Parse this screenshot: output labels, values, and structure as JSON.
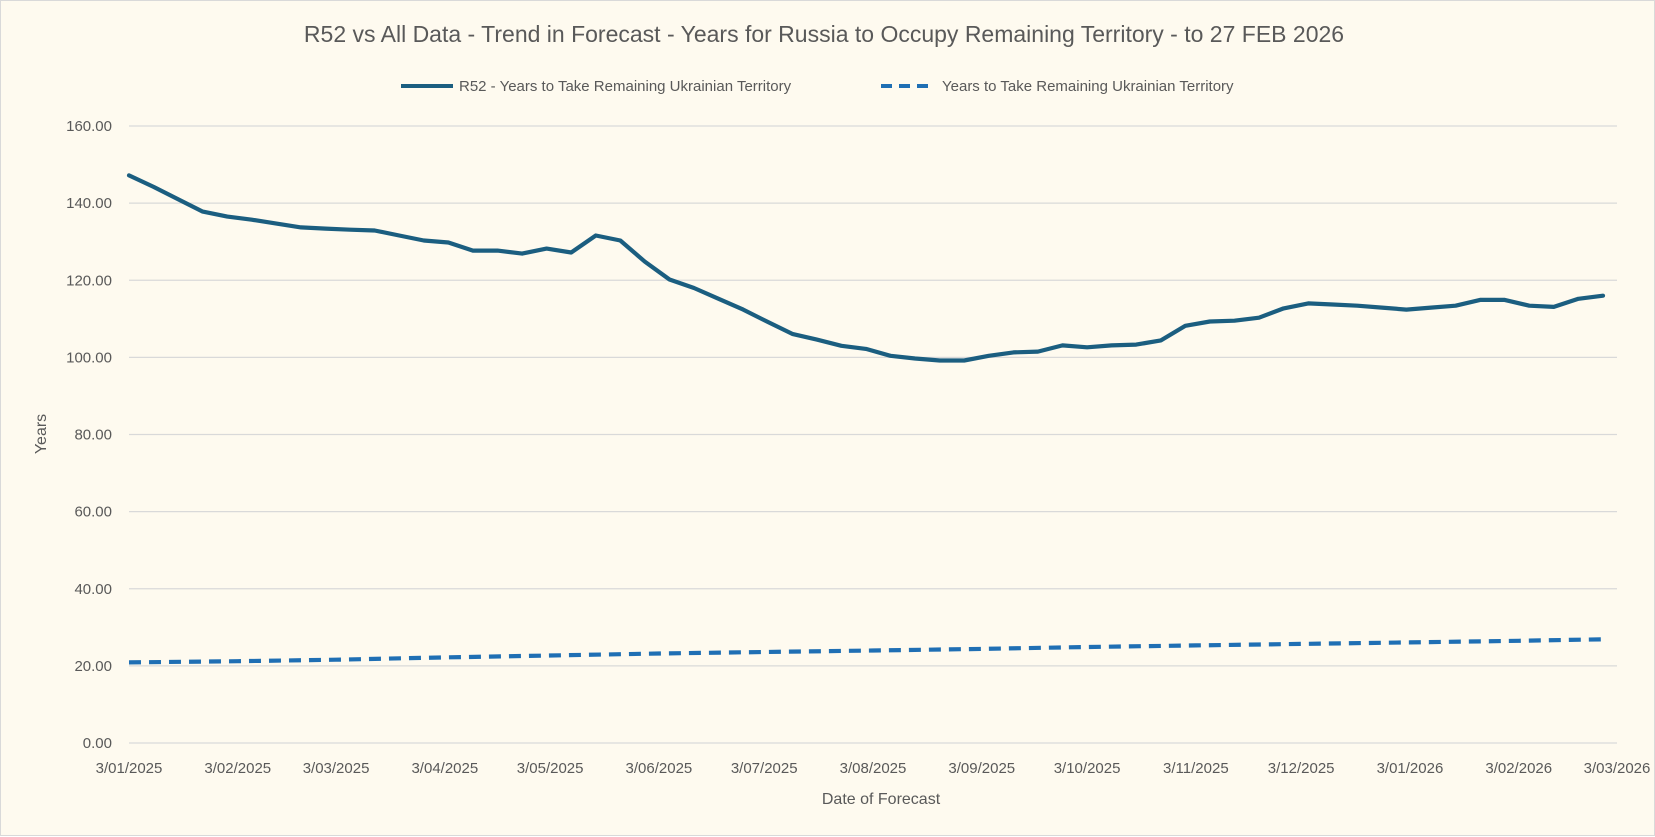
{
  "chart_data": {
    "type": "line",
    "title": "R52 vs All Data  - Trend in Forecast - Years for Russia to Occupy Remaining Territory - to 27 FEB 2026",
    "xlabel": "Date of Forecast",
    "ylabel": "Years",
    "ylim": [
      0,
      160
    ],
    "yticks": [
      "0.00",
      "20.00",
      "40.00",
      "60.00",
      "80.00",
      "100.00",
      "120.00",
      "140.00",
      "160.00"
    ],
    "xlim": [
      "2025-01-03",
      "2026-03-03"
    ],
    "xticks": [
      {
        "label": "3/01/2025",
        "date": "2025-01-03"
      },
      {
        "label": "3/02/2025",
        "date": "2025-02-03"
      },
      {
        "label": "3/03/2025",
        "date": "2025-03-03"
      },
      {
        "label": "3/04/2025",
        "date": "2025-04-03"
      },
      {
        "label": "3/05/2025",
        "date": "2025-05-03"
      },
      {
        "label": "3/06/2025",
        "date": "2025-06-03"
      },
      {
        "label": "3/07/2025",
        "date": "2025-07-03"
      },
      {
        "label": "3/08/2025",
        "date": "2025-08-03"
      },
      {
        "label": "3/09/2025",
        "date": "2025-09-03"
      },
      {
        "label": "3/10/2025",
        "date": "2025-10-03"
      },
      {
        "label": "3/11/2025",
        "date": "2025-11-03"
      },
      {
        "label": "3/12/2025",
        "date": "2025-12-03"
      },
      {
        "label": "3/01/2026",
        "date": "2026-01-03"
      },
      {
        "label": "3/02/2026",
        "date": "2026-02-03"
      },
      {
        "label": "3/03/2026",
        "date": "2026-03-03"
      }
    ],
    "grid": true,
    "legend_position": "top",
    "series": [
      {
        "name": "R52 - Years to Take Remaining Ukrainian Territory",
        "color": "#1b5e80",
        "style": "solid",
        "points": [
          [
            "2025-01-03",
            147.2
          ],
          [
            "2025-01-10",
            144.2
          ],
          [
            "2025-01-17",
            141.0
          ],
          [
            "2025-01-24",
            137.8
          ],
          [
            "2025-01-31",
            136.5
          ],
          [
            "2025-02-07",
            135.7
          ],
          [
            "2025-02-14",
            134.7
          ],
          [
            "2025-02-21",
            133.7
          ],
          [
            "2025-02-28",
            133.4
          ],
          [
            "2025-03-07",
            133.1
          ],
          [
            "2025-03-14",
            132.9
          ],
          [
            "2025-03-21",
            131.6
          ],
          [
            "2025-03-28",
            130.3
          ],
          [
            "2025-04-04",
            129.8
          ],
          [
            "2025-04-11",
            127.7
          ],
          [
            "2025-04-18",
            127.7
          ],
          [
            "2025-04-25",
            126.9
          ],
          [
            "2025-05-02",
            128.2
          ],
          [
            "2025-05-09",
            127.2
          ],
          [
            "2025-05-16",
            131.6
          ],
          [
            "2025-05-23",
            130.3
          ],
          [
            "2025-05-30",
            124.8
          ],
          [
            "2025-06-06",
            120.2
          ],
          [
            "2025-06-13",
            118.0
          ],
          [
            "2025-06-20",
            115.2
          ],
          [
            "2025-06-27",
            112.4
          ],
          [
            "2025-07-04",
            109.2
          ],
          [
            "2025-07-11",
            106.1
          ],
          [
            "2025-07-18",
            104.6
          ],
          [
            "2025-07-25",
            103.0
          ],
          [
            "2025-08-01",
            102.2
          ],
          [
            "2025-08-08",
            100.4
          ],
          [
            "2025-08-15",
            99.7
          ],
          [
            "2025-08-22",
            99.2
          ],
          [
            "2025-08-29",
            99.2
          ],
          [
            "2025-09-05",
            100.4
          ],
          [
            "2025-09-12",
            101.3
          ],
          [
            "2025-09-19",
            101.5
          ],
          [
            "2025-09-26",
            103.1
          ],
          [
            "2025-10-03",
            102.6
          ],
          [
            "2025-10-10",
            103.1
          ],
          [
            "2025-10-17",
            103.3
          ],
          [
            "2025-10-24",
            104.4
          ],
          [
            "2025-10-31",
            108.2
          ],
          [
            "2025-11-07",
            109.3
          ],
          [
            "2025-11-14",
            109.5
          ],
          [
            "2025-11-21",
            110.3
          ],
          [
            "2025-11-28",
            112.7
          ],
          [
            "2025-12-05",
            114.0
          ],
          [
            "2025-12-12",
            113.7
          ],
          [
            "2025-12-19",
            113.4
          ],
          [
            "2025-12-26",
            112.9
          ],
          [
            "2026-01-02",
            112.4
          ],
          [
            "2026-01-09",
            112.9
          ],
          [
            "2026-01-16",
            113.4
          ],
          [
            "2026-01-23",
            114.9
          ],
          [
            "2026-01-30",
            114.9
          ],
          [
            "2026-02-06",
            113.4
          ],
          [
            "2026-02-13",
            113.1
          ],
          [
            "2026-02-20",
            115.2
          ],
          [
            "2026-02-27",
            116.0
          ]
        ]
      },
      {
        "name": "Years to Take Remaining Ukrainian Territory",
        "color": "#1f6fb4",
        "style": "dashed",
        "points": [
          [
            "2025-01-03",
            20.9
          ],
          [
            "2025-02-03",
            21.2
          ],
          [
            "2025-03-03",
            21.6
          ],
          [
            "2025-04-03",
            22.2
          ],
          [
            "2025-05-03",
            22.7
          ],
          [
            "2025-06-03",
            23.2
          ],
          [
            "2025-07-03",
            23.6
          ],
          [
            "2025-08-03",
            24.0
          ],
          [
            "2025-09-03",
            24.4
          ],
          [
            "2025-10-03",
            24.9
          ],
          [
            "2025-11-03",
            25.3
          ],
          [
            "2025-12-03",
            25.7
          ],
          [
            "2026-01-03",
            26.1
          ],
          [
            "2026-02-03",
            26.5
          ],
          [
            "2026-02-27",
            26.9
          ]
        ]
      }
    ]
  }
}
